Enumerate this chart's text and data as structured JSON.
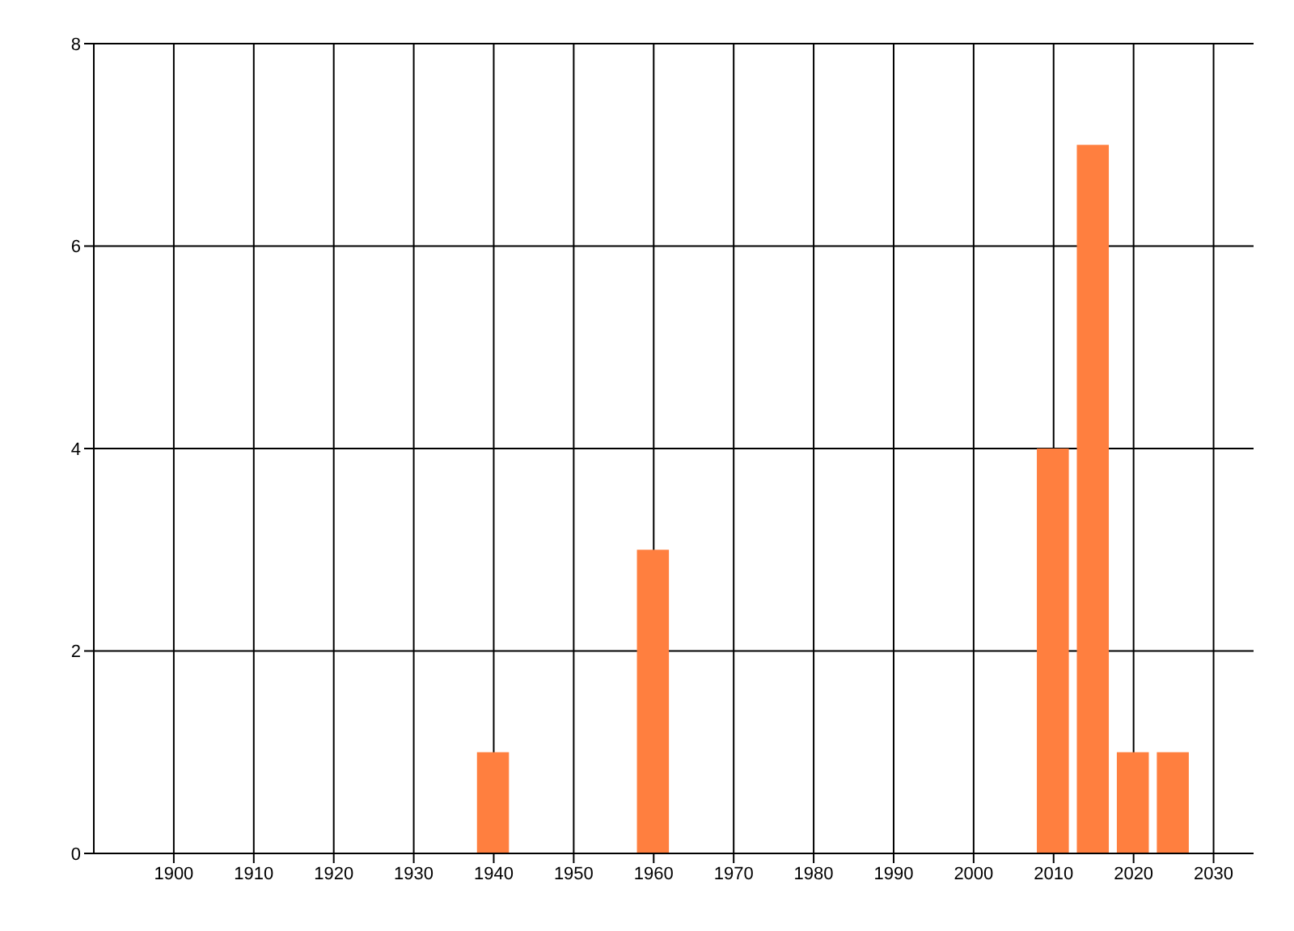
{
  "chart_data": {
    "type": "bar",
    "x": [
      1940,
      1960,
      2010,
      2015,
      2020,
      2025
    ],
    "values": [
      1,
      3,
      4,
      7,
      1,
      1
    ],
    "color": "#ff7f3f",
    "xlim": [
      1890,
      2035
    ],
    "xticks": [
      1900,
      1910,
      1920,
      1930,
      1940,
      1950,
      1960,
      1970,
      1980,
      1990,
      2000,
      2010,
      2020,
      2030
    ],
    "ylim": [
      0,
      8
    ],
    "yticks": [
      0,
      2,
      4,
      6,
      8
    ],
    "grid": true,
    "legend": false
  }
}
